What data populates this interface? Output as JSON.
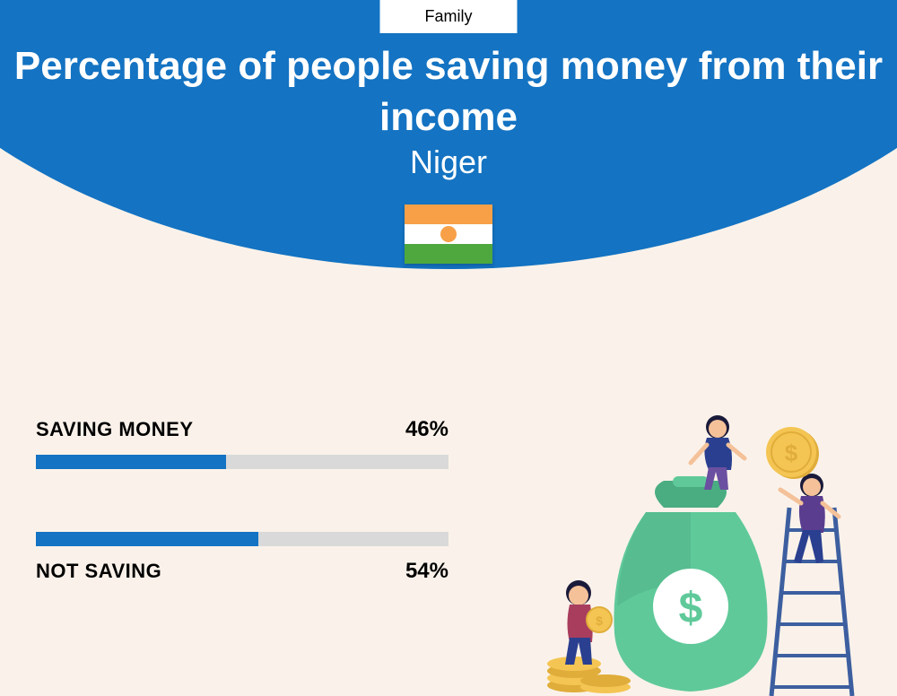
{
  "category": "Family",
  "title": "Percentage of people saving money from their income",
  "country": "Niger",
  "flag": {
    "top_color": "#f7a048",
    "middle_color": "#ffffff",
    "bottom_color": "#4fa83d",
    "circle_color": "#f7a048"
  },
  "colors": {
    "primary": "#1473c2",
    "background": "#faf2ea",
    "bar_track": "#d9d9d9",
    "bar_fill": "#1473c2",
    "text": "#000000",
    "title_text": "#ffffff"
  },
  "bars": [
    {
      "label": "SAVING MONEY",
      "value": 46,
      "value_text": "46%",
      "label_position": "top"
    },
    {
      "label": "NOT SAVING",
      "value": 54,
      "value_text": "54%",
      "label_position": "bottom"
    }
  ],
  "illustration": {
    "bag_color": "#5fc99a",
    "bag_dark": "#4aad82",
    "coin_color": "#f4c553",
    "coin_dark": "#e0ad3a",
    "person1_top": "#2a3f8f",
    "person1_bottom": "#6b4fa0",
    "person2_top": "#a83d5e",
    "person2_bottom": "#2a3f8f",
    "person3_top": "#5a3d8f",
    "person3_bottom": "#2a3f8f",
    "ladder_color": "#3d5fa0",
    "skin_color": "#f4c199"
  }
}
